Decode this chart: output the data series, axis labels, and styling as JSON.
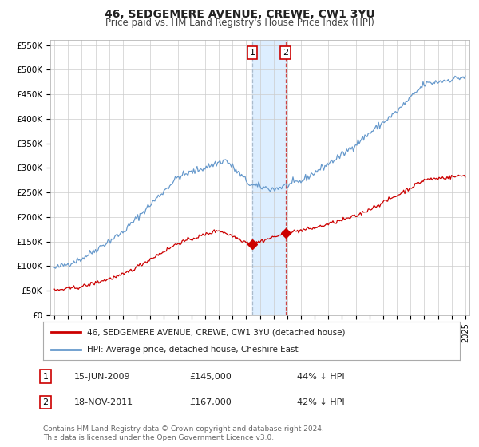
{
  "title": "46, SEDGEMERE AVENUE, CREWE, CW1 3YU",
  "subtitle": "Price paid vs. HM Land Registry's House Price Index (HPI)",
  "title_fontsize": 10,
  "subtitle_fontsize": 8.5,
  "ylim": [
    0,
    560000
  ],
  "yticks": [
    0,
    50000,
    100000,
    150000,
    200000,
    250000,
    300000,
    350000,
    400000,
    450000,
    500000,
    550000
  ],
  "ytick_labels": [
    "£0",
    "£50K",
    "£100K",
    "£150K",
    "£200K",
    "£250K",
    "£300K",
    "£350K",
    "£400K",
    "£450K",
    "£500K",
    "£550K"
  ],
  "x_start_year": 1995,
  "x_end_year": 2025,
  "red_line_color": "#cc0000",
  "blue_line_color": "#6699cc",
  "shade_color": "#ddeeff",
  "vline1_color": "#aabbcc",
  "vline2_color": "#cc4444",
  "marker_color": "#cc0000",
  "transaction1_year": 2009.45,
  "transaction1_value": 145000,
  "transaction2_year": 2011.88,
  "transaction2_value": 167000,
  "legend_red": "46, SEDGEMERE AVENUE, CREWE, CW1 3YU (detached house)",
  "legend_blue": "HPI: Average price, detached house, Cheshire East",
  "transaction_rows": [
    {
      "num": "1",
      "date": "15-JUN-2009",
      "price": "£145,000",
      "hpi": "44% ↓ HPI"
    },
    {
      "num": "2",
      "date": "18-NOV-2011",
      "price": "£167,000",
      "hpi": "42% ↓ HPI"
    }
  ],
  "footnote": "Contains HM Land Registry data © Crown copyright and database right 2024.\nThis data is licensed under the Open Government Licence v3.0.",
  "bg_color": "#ffffff",
  "grid_color": "#cccccc"
}
